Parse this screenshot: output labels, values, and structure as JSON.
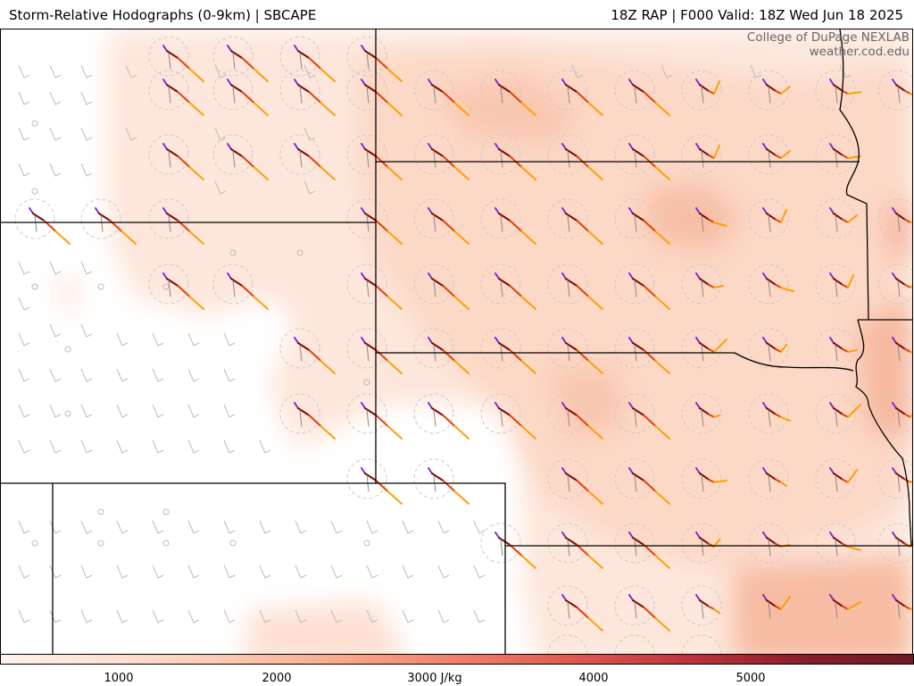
{
  "header": {
    "title_left": "Storm-Relative Hodographs (0-9km) | SBCAPE",
    "title_right": "18Z RAP | F000 Valid: 18Z Wed Jun 18 2025"
  },
  "credit": {
    "line1": "College of DuPage NEXLAB",
    "line2": "weather.cod.edu"
  },
  "colorbar": {
    "labels": [
      "1000",
      "2000",
      "3000 J/kg",
      "4000",
      "5000"
    ],
    "colors": [
      "#fff2ec",
      "#fde0d3",
      "#fcc9b2",
      "#f8a98a",
      "#f0806a",
      "#e05a50",
      "#c0343c",
      "#8c1f2c",
      "#6a1a24"
    ]
  },
  "legend_colors": {
    "hodo_segments": [
      "#7a2ad6",
      "#7a0a0a",
      "#e4400a",
      "#ffa000"
    ],
    "cape_fill": "#f9c8b2"
  }
}
